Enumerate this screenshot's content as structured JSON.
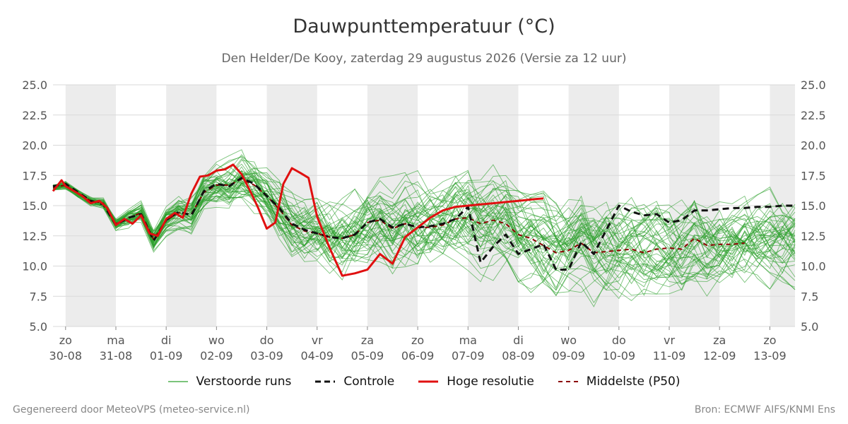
{
  "title": "Dauwpunttemperatuur (°C)",
  "subtitle": "Den Helder/De Kooy, zaterdag 29 augustus 2026 (Versie za 12 uur)",
  "footer_left": "Gegenereerd door MeteoVPS (meteo-service.nl)",
  "footer_right": "Bron: ECMWF AIFS/KNMI Ens",
  "colors": {
    "ensemble": "#2ca02c",
    "control": "#111111",
    "high_res": "#e01010",
    "median": "#8b0000",
    "weekend_band": "#ececec",
    "grid": "#d9d9d9"
  },
  "chart_data": {
    "type": "line",
    "ylim": [
      5.0,
      25.0
    ],
    "yticks": [
      "5.0",
      "7.5",
      "10.0",
      "12.5",
      "15.0",
      "17.5",
      "20.0",
      "22.5",
      "25.0"
    ],
    "x_unit": "days from 30-08",
    "xlim": [
      -0.25,
      14.5
    ],
    "xticks": [
      {
        "day": "zo",
        "date": "30-08"
      },
      {
        "day": "ma",
        "date": "31-08"
      },
      {
        "day": "di",
        "date": "01-09"
      },
      {
        "day": "wo",
        "date": "02-09"
      },
      {
        "day": "do",
        "date": "03-09"
      },
      {
        "day": "vr",
        "date": "04-09"
      },
      {
        "day": "za",
        "date": "05-09"
      },
      {
        "day": "zo",
        "date": "06-09"
      },
      {
        "day": "ma",
        "date": "07-09"
      },
      {
        "day": "di",
        "date": "08-09"
      },
      {
        "day": "wo",
        "date": "09-09"
      },
      {
        "day": "do",
        "date": "10-09"
      },
      {
        "day": "vr",
        "date": "11-09"
      },
      {
        "day": "za",
        "date": "12-09"
      },
      {
        "day": "zo",
        "date": "13-09"
      }
    ],
    "shaded_bands": [
      [
        0,
        1
      ],
      [
        2,
        3
      ],
      [
        4,
        5
      ],
      [
        6,
        7
      ],
      [
        8,
        9
      ],
      [
        10,
        11
      ],
      [
        12,
        13
      ],
      [
        14,
        14.5
      ]
    ],
    "legend": [
      "Verstoorde runs",
      "Controle",
      "Hoge resolutie",
      "Middelste (P50)"
    ],
    "series": [
      {
        "name": "Hoge resolutie",
        "x": [
          -0.25,
          -0.08,
          0.0,
          0.17,
          0.33,
          0.5,
          0.67,
          0.83,
          1.0,
          1.17,
          1.33,
          1.5,
          1.67,
          1.83,
          2.0,
          2.17,
          2.33,
          2.5,
          2.67,
          2.83,
          3.0,
          3.17,
          3.33,
          3.5,
          3.67,
          3.83,
          4.0,
          4.17,
          4.33,
          4.5,
          4.67,
          4.83,
          5.0,
          5.25,
          5.5,
          5.75,
          6.0,
          6.25,
          6.5,
          6.75,
          7.0,
          7.25,
          7.5,
          7.75,
          8.0,
          8.25,
          8.5,
          8.75,
          9.0,
          9.25,
          9.5
        ],
        "y": [
          16.2,
          17.1,
          16.6,
          16.2,
          15.8,
          15.2,
          15.4,
          14.8,
          13.4,
          13.9,
          13.5,
          14.2,
          12.7,
          12.5,
          13.9,
          14.4,
          14.0,
          16.0,
          17.4,
          17.5,
          17.9,
          18.0,
          18.4,
          17.6,
          16.2,
          14.8,
          13.1,
          13.6,
          16.8,
          18.1,
          17.7,
          17.3,
          14.1,
          11.5,
          9.2,
          9.4,
          9.7,
          11.0,
          10.2,
          12.4,
          13.2,
          14.0,
          14.6,
          14.9,
          15.0,
          15.1,
          15.2,
          15.3,
          15.4,
          15.5,
          15.6
        ]
      },
      {
        "name": "Controle",
        "x": [
          -0.25,
          0.0,
          0.25,
          0.5,
          0.75,
          1.0,
          1.25,
          1.5,
          1.75,
          2.0,
          2.25,
          2.5,
          2.75,
          3.0,
          3.25,
          3.5,
          3.75,
          4.0,
          4.25,
          4.5,
          4.75,
          5.0,
          5.25,
          5.5,
          5.75,
          6.0,
          6.25,
          6.5,
          6.75,
          7.0,
          7.25,
          7.5,
          7.75,
          8.0,
          8.25,
          8.5,
          8.75,
          9.0,
          9.25,
          9.5,
          9.75,
          10.0,
          10.25,
          10.5,
          10.75,
          11.0,
          11.25,
          11.5,
          11.75,
          12.0,
          12.25,
          12.5,
          12.75,
          13.0,
          13.25,
          13.5,
          13.75,
          14.0,
          14.25,
          14.5
        ],
        "y": [
          16.6,
          16.8,
          16.1,
          15.4,
          15.1,
          13.4,
          14.0,
          14.3,
          12.1,
          13.8,
          14.5,
          14.2,
          16.2,
          16.8,
          16.6,
          17.3,
          16.8,
          15.8,
          14.8,
          13.5,
          13.0,
          12.7,
          12.4,
          12.3,
          12.6,
          13.6,
          13.9,
          13.2,
          13.5,
          13.2,
          13.3,
          13.5,
          13.9,
          14.9,
          10.3,
          11.6,
          12.6,
          11.0,
          11.4,
          11.8,
          9.7,
          9.7,
          12.0,
          11.0,
          13.0,
          15.0,
          14.5,
          14.2,
          14.3,
          13.6,
          13.8,
          14.6,
          14.6,
          14.7,
          14.8,
          14.8,
          14.9,
          14.9,
          15.0,
          15.0
        ]
      },
      {
        "name": "Middelste (P50)",
        "x": [
          -0.25,
          0.0,
          0.25,
          0.5,
          0.75,
          1.0,
          1.25,
          1.5,
          1.75,
          2.0,
          2.25,
          2.5,
          2.75,
          3.0,
          3.25,
          3.5,
          3.75,
          4.0,
          4.25,
          4.5,
          4.75,
          5.0,
          5.25,
          5.5,
          5.75,
          6.0,
          6.25,
          6.5,
          6.75,
          7.0,
          7.25,
          7.5,
          7.75,
          8.0,
          8.25,
          8.5,
          8.75,
          9.0,
          9.25,
          9.5,
          9.75,
          10.0,
          10.25,
          10.5,
          10.75,
          11.0,
          11.25,
          11.5,
          11.75,
          12.0,
          12.25,
          12.5,
          12.75,
          13.0,
          13.25,
          13.5
        ],
        "y": [
          16.5,
          16.7,
          16.0,
          15.4,
          15.2,
          13.5,
          14.0,
          14.4,
          12.2,
          13.8,
          14.4,
          14.3,
          16.1,
          16.7,
          16.7,
          17.2,
          16.7,
          15.8,
          14.7,
          13.4,
          12.9,
          12.7,
          12.4,
          12.3,
          12.6,
          13.6,
          13.8,
          13.1,
          13.5,
          13.2,
          13.2,
          13.4,
          13.9,
          14.0,
          13.5,
          13.8,
          13.5,
          12.6,
          12.3,
          11.7,
          11.1,
          11.3,
          11.9,
          11.1,
          11.2,
          11.3,
          11.4,
          11.1,
          11.4,
          11.5,
          11.4,
          12.3,
          11.7,
          11.8,
          11.8,
          11.9
        ]
      }
    ]
  }
}
